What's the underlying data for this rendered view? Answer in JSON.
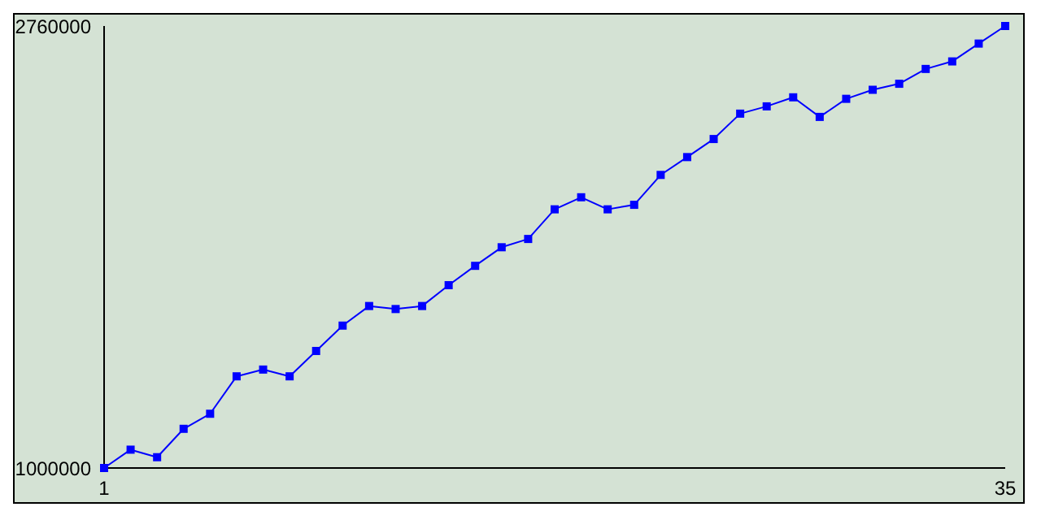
{
  "chart_data": {
    "type": "line",
    "x": [
      1,
      2,
      3,
      4,
      5,
      6,
      7,
      8,
      9,
      10,
      11,
      12,
      13,
      14,
      15,
      16,
      17,
      18,
      19,
      20,
      21,
      22,
      23,
      24,
      25,
      26,
      27,
      28,
      29,
      30,
      31,
      32,
      33,
      34,
      35
    ],
    "series": [
      {
        "color": "#0000ff",
        "values": [
          1000000,
          1073000,
          1043000,
          1156000,
          1216000,
          1365000,
          1392000,
          1365000,
          1466000,
          1567000,
          1645000,
          1633000,
          1645000,
          1728000,
          1805000,
          1879000,
          1912000,
          2030000,
          2078000,
          2030000,
          2048000,
          2167000,
          2238000,
          2310000,
          2411000,
          2440000,
          2476000,
          2398000,
          2470000,
          2506000,
          2530000,
          2589000,
          2619000,
          2690000,
          2760000
        ]
      }
    ],
    "xlim": [
      1,
      35
    ],
    "xticks": [
      1,
      35
    ],
    "ylim": [
      1000000,
      2760000
    ],
    "yticks": [
      1000000,
      2760000
    ],
    "marker": "square",
    "line_style": "solid",
    "grid": false,
    "legend": false
  }
}
